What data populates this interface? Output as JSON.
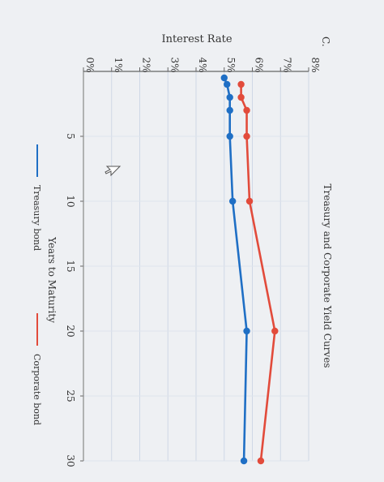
{
  "question_label": "C.",
  "chart_data": {
    "type": "line",
    "title": "Treasury and Corporate Yield Curves",
    "xlabel": "Years to Maturity",
    "ylabel": "Interest Rate",
    "xlim": [
      0,
      30
    ],
    "ylim": [
      0,
      8
    ],
    "xticks": [
      "5",
      "10",
      "15",
      "20",
      "25",
      "30"
    ],
    "yticks": [
      "0%",
      "1%",
      "2%",
      "3%",
      "4%",
      "5%",
      "6%",
      "7%",
      "8%"
    ],
    "grid": true,
    "legend": "bottom",
    "series": [
      {
        "name": "Treasury bond",
        "color": "#1f6fc5",
        "x": [
          0.5,
          1,
          2,
          3,
          5,
          10,
          20,
          30
        ],
        "y": [
          5.0,
          5.1,
          5.2,
          5.2,
          5.2,
          5.3,
          5.8,
          5.7
        ]
      },
      {
        "name": "Corporate bond",
        "color": "#e24b3b",
        "x": [
          1,
          2,
          3,
          5,
          10,
          20,
          30
        ],
        "y": [
          5.6,
          5.6,
          5.8,
          5.8,
          5.9,
          6.8,
          6.3
        ]
      }
    ]
  }
}
